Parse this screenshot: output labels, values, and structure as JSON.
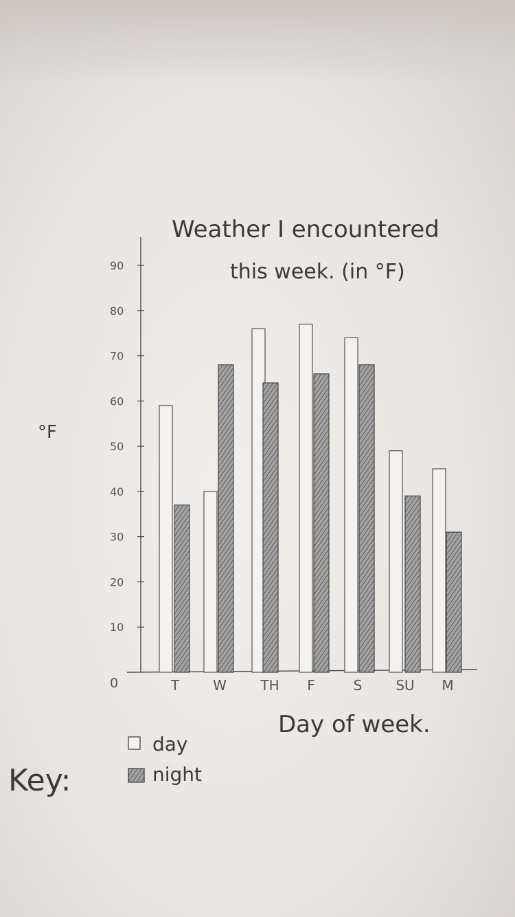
{
  "chart_data": {
    "type": "bar",
    "title": "Weather I encountered this week. (in °F)",
    "title_lines": [
      "Weather I encountered",
      "this week.   (in °F)"
    ],
    "ylabel": "°F",
    "xlabel": "Day of week.",
    "categories": [
      "T",
      "W",
      "TH",
      "F",
      "S",
      "SU",
      "M"
    ],
    "ylim": [
      0,
      90
    ],
    "yticks": [
      0,
      10,
      20,
      30,
      40,
      50,
      60,
      70,
      80,
      90
    ],
    "series": [
      {
        "name": "day",
        "values": [
          59,
          40,
          76,
          77,
          74,
          49,
          45
        ],
        "color": "#f4f1ee",
        "pattern": "none"
      },
      {
        "name": "night",
        "values": [
          37,
          68,
          64,
          66,
          68,
          39,
          31
        ],
        "color": "#8e8e8e",
        "pattern": "hatched"
      }
    ],
    "legend": {
      "title": "Key:",
      "position": "bottom-left"
    },
    "grid": false
  }
}
